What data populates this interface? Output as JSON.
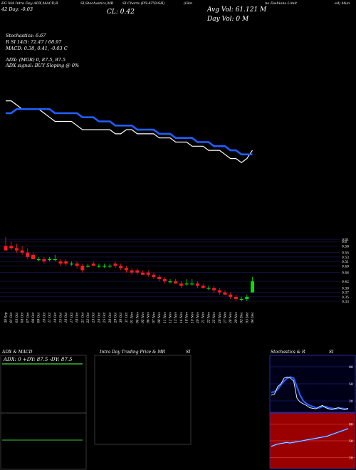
{
  "header": {
    "line1_left": "EG MA Intra Day ADX,MACD,B",
    "line1_mid1": "SI,Stochastics,MR",
    "line1_mid2": "SI Charts (PILATVASH)",
    "line1_right1": "(Gkn",
    "line1_right2": "no Fashions Limit",
    "line1_right3": "ed) Mun",
    "day_line": "42 Day: -0.03",
    "close": "CL: 0.42",
    "avg_vol": "Avg Vol: 61.121 M",
    "day_vol": "Day Vol: 0   M"
  },
  "indicators": {
    "stochastics": "Stochastics: 6.67",
    "rsi": "R    SI 14/5: 72.47 / 68.97",
    "macd": "MACD: 0.38, 0.41, -0.03 C",
    "adx": "ADX:                   (MGR) 0, 87.5, 87.5",
    "adx_signal": "ADX  signal:                    BUY Sloping @ 0%"
  },
  "panels": {
    "adx_macd_title": "ADX  & MACD",
    "adx_values": "ADX: 0  +DY: 87.5 -DY: 87.5",
    "intraday_title": "Intra  Day Trading Price  & MR",
    "intraday_title_si": "SI",
    "stoch_title": "Stochastics & R",
    "stoch_title_si": "SI"
  },
  "colors": {
    "ema_line": "#1f5fff",
    "price_line": "#ffffff",
    "candle_down": "#ff1a1a",
    "candle_up": "#00e000",
    "grid": "#1a1a60",
    "green_line": "#2e9e2e"
  },
  "chart_data": {
    "type": "candlestick",
    "dates": [
      "30 Sep",
      "01 Oct",
      "03 Oct",
      "04 Oct",
      "07 Oct",
      "08 Oct",
      "09 Oct",
      "10 Oct",
      "11 Oct",
      "14 Oct",
      "15 Oct",
      "16 Oct",
      "17 Oct",
      "18 Oct",
      "21 Oct",
      "22 Oct",
      "23 Oct",
      "24 Oct",
      "25 Oct",
      "28 Oct",
      "29 Oct",
      "30 Oct",
      "31 Oct",
      "01 Nov",
      "04 Nov",
      "05 Nov",
      "06 Nov",
      "07 Nov",
      "08 Nov",
      "11 Nov",
      "12 Nov",
      "13 Nov",
      "14 Nov",
      "18 Nov",
      "19 Nov",
      "20 Nov",
      "21 Nov",
      "22 Nov",
      "25 Nov",
      "26 Nov",
      "27 Nov",
      "28 Nov",
      "29 Nov",
      "02 Dec",
      "03 Dec",
      "04 Dec"
    ],
    "y_ticks": [
      0.61,
      0.6,
      0.58,
      0.55,
      0.53,
      0.51,
      0.49,
      0.46,
      0.42,
      0.39,
      0.37,
      0.35,
      0.33
    ],
    "y_tick_labels": [
      "0.61",
      "0.6",
      "0.58",
      "0.55",
      "0.53",
      "0.51",
      "0.49",
      "0.46",
      "0.42",
      "0.39",
      "0.37",
      "0.35",
      "0.33"
    ],
    "ylim": [
      0.33,
      0.62
    ],
    "candles": [
      {
        "o": 0.58,
        "h": 0.62,
        "l": 0.56,
        "c": 0.56
      },
      {
        "o": 0.58,
        "h": 0.6,
        "l": 0.56,
        "c": 0.57
      },
      {
        "o": 0.57,
        "h": 0.59,
        "l": 0.55,
        "c": 0.56
      },
      {
        "o": 0.56,
        "h": 0.58,
        "l": 0.54,
        "c": 0.55
      },
      {
        "o": 0.55,
        "h": 0.57,
        "l": 0.52,
        "c": 0.53
      },
      {
        "o": 0.54,
        "h": 0.55,
        "l": 0.52,
        "c": 0.52
      },
      {
        "o": 0.52,
        "h": 0.53,
        "l": 0.51,
        "c": 0.52
      },
      {
        "o": 0.52,
        "h": 0.53,
        "l": 0.5,
        "c": 0.51
      },
      {
        "o": 0.52,
        "h": 0.53,
        "l": 0.51,
        "c": 0.52
      },
      {
        "o": 0.52,
        "h": 0.54,
        "l": 0.51,
        "c": 0.52
      },
      {
        "o": 0.51,
        "h": 0.52,
        "l": 0.49,
        "c": 0.5
      },
      {
        "o": 0.51,
        "h": 0.52,
        "l": 0.49,
        "c": 0.5
      },
      {
        "o": 0.5,
        "h": 0.51,
        "l": 0.49,
        "c": 0.5
      },
      {
        "o": 0.5,
        "h": 0.51,
        "l": 0.48,
        "c": 0.49
      },
      {
        "o": 0.49,
        "h": 0.5,
        "l": 0.46,
        "c": 0.47
      },
      {
        "o": 0.49,
        "h": 0.5,
        "l": 0.48,
        "c": 0.49
      },
      {
        "o": 0.5,
        "h": 0.51,
        "l": 0.49,
        "c": 0.49
      },
      {
        "o": 0.49,
        "h": 0.5,
        "l": 0.48,
        "c": 0.49
      },
      {
        "o": 0.49,
        "h": 0.5,
        "l": 0.48,
        "c": 0.49
      },
      {
        "o": 0.49,
        "h": 0.5,
        "l": 0.48,
        "c": 0.49
      },
      {
        "o": 0.5,
        "h": 0.51,
        "l": 0.48,
        "c": 0.49
      },
      {
        "o": 0.49,
        "h": 0.5,
        "l": 0.47,
        "c": 0.48
      },
      {
        "o": 0.48,
        "h": 0.49,
        "l": 0.46,
        "c": 0.47
      },
      {
        "o": 0.47,
        "h": 0.48,
        "l": 0.45,
        "c": 0.46
      },
      {
        "o": 0.47,
        "h": 0.48,
        "l": 0.45,
        "c": 0.46
      },
      {
        "o": 0.46,
        "h": 0.47,
        "l": 0.45,
        "c": 0.45
      },
      {
        "o": 0.46,
        "h": 0.47,
        "l": 0.44,
        "c": 0.45
      },
      {
        "o": 0.45,
        "h": 0.46,
        "l": 0.43,
        "c": 0.44
      },
      {
        "o": 0.44,
        "h": 0.45,
        "l": 0.42,
        "c": 0.43
      },
      {
        "o": 0.43,
        "h": 0.44,
        "l": 0.41,
        "c": 0.42
      },
      {
        "o": 0.42,
        "h": 0.43,
        "l": 0.41,
        "c": 0.42
      },
      {
        "o": 0.42,
        "h": 0.43,
        "l": 0.41,
        "c": 0.41
      },
      {
        "o": 0.41,
        "h": 0.42,
        "l": 0.39,
        "c": 0.4
      },
      {
        "o": 0.41,
        "h": 0.43,
        "l": 0.4,
        "c": 0.41
      },
      {
        "o": 0.41,
        "h": 0.43,
        "l": 0.4,
        "c": 0.41
      },
      {
        "o": 0.41,
        "h": 0.42,
        "l": 0.39,
        "c": 0.4
      },
      {
        "o": 0.4,
        "h": 0.41,
        "l": 0.39,
        "c": 0.39
      },
      {
        "o": 0.39,
        "h": 0.4,
        "l": 0.38,
        "c": 0.39
      },
      {
        "o": 0.39,
        "h": 0.4,
        "l": 0.37,
        "c": 0.38
      },
      {
        "o": 0.38,
        "h": 0.39,
        "l": 0.36,
        "c": 0.37
      },
      {
        "o": 0.37,
        "h": 0.38,
        "l": 0.36,
        "c": 0.36
      },
      {
        "o": 0.36,
        "h": 0.37,
        "l": 0.34,
        "c": 0.35
      },
      {
        "o": 0.35,
        "h": 0.36,
        "l": 0.33,
        "c": 0.34
      },
      {
        "o": 0.34,
        "h": 0.35,
        "l": 0.33,
        "c": 0.34
      },
      {
        "o": 0.34,
        "h": 0.36,
        "l": 0.33,
        "c": 0.35
      },
      {
        "o": 0.37,
        "h": 0.44,
        "l": 0.37,
        "c": 0.42
      }
    ],
    "line_series": [
      {
        "values": [
          0.62,
          0.62,
          0.61,
          0.6,
          0.6,
          0.6,
          0.6,
          0.59,
          0.58,
          0.57,
          0.57,
          0.57,
          0.57,
          0.56,
          0.55,
          0.55,
          0.55,
          0.55,
          0.55,
          0.55,
          0.54,
          0.54,
          0.55,
          0.55,
          0.54,
          0.54,
          0.54,
          0.54,
          0.53,
          0.53,
          0.53,
          0.52,
          0.52,
          0.52,
          0.51,
          0.51,
          0.51,
          0.5,
          0.5,
          0.5,
          0.49,
          0.48,
          0.48,
          0.47,
          0.48,
          0.5
        ]
      },
      {
        "values": [
          0.59,
          0.59,
          0.6,
          0.6,
          0.6,
          0.6,
          0.6,
          0.6,
          0.6,
          0.59,
          0.59,
          0.59,
          0.59,
          0.59,
          0.58,
          0.58,
          0.58,
          0.57,
          0.57,
          0.57,
          0.56,
          0.56,
          0.56,
          0.56,
          0.55,
          0.55,
          0.55,
          0.55,
          0.54,
          0.54,
          0.54,
          0.53,
          0.53,
          0.53,
          0.53,
          0.52,
          0.52,
          0.52,
          0.51,
          0.51,
          0.51,
          0.5,
          0.5,
          0.49,
          0.49,
          0.49
        ]
      }
    ],
    "stochastics": {
      "yticks": [
        "80",
        "50",
        "20"
      ],
      "k": [
        30,
        32,
        45,
        50,
        60,
        62,
        60,
        55,
        25,
        18,
        15,
        12,
        8,
        7,
        6,
        10,
        12,
        8,
        6,
        5,
        7,
        8,
        6,
        5,
        7
      ],
      "d": [
        35,
        36,
        40,
        48,
        55,
        60,
        62,
        60,
        45,
        30,
        20,
        15,
        12,
        10,
        8,
        8,
        10,
        10,
        8,
        7,
        6,
        7,
        7,
        6,
        6
      ]
    },
    "rsi": {
      "yticks": [
        "80",
        "50",
        "20"
      ],
      "values": [
        40,
        42,
        44,
        45,
        46,
        47,
        46,
        47,
        48,
        49,
        50,
        51,
        52,
        53,
        54,
        55,
        56,
        57,
        58,
        60,
        62,
        64,
        66,
        68,
        70,
        72
      ]
    },
    "adx_macd": {
      "adx": 0,
      "pdi": 87.5,
      "mdi": 87.5
    }
  }
}
